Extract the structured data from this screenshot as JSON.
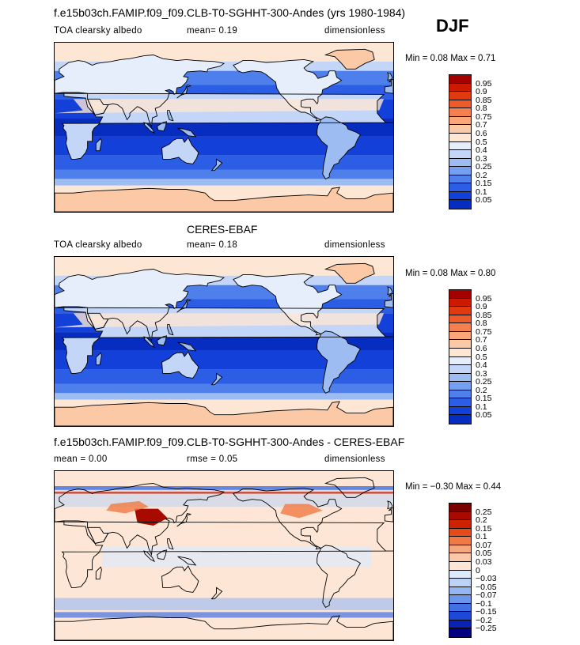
{
  "header": {
    "title": "f.e15b03ch.FAMIP.f09_f09.CLB-T0-SGHHT-300-Andes (yrs 1980-1984)",
    "season": "DJF"
  },
  "panels": [
    {
      "id": "model",
      "title": "",
      "variable": "TOA clearsky albedo",
      "stat1": "mean=   0.19",
      "stat2": "",
      "units": "dimensionless",
      "minmax": "Min =   0.08  Max =   0.71",
      "levels": [
        "0.95",
        "0.9",
        "0.85",
        "0.8",
        "0.75",
        "0.7",
        "0.6",
        "0.5",
        "0.4",
        "0.3",
        "0.25",
        "0.2",
        "0.15",
        "0.1",
        "0.05"
      ],
      "colors": [
        "#a50000",
        "#cc1a00",
        "#e0380f",
        "#ee5a2a",
        "#f4804f",
        "#f8a67a",
        "#fbc9a5",
        "#fde6d4",
        "#e6eefb",
        "#c3d6f7",
        "#9dbdf2",
        "#779ff0",
        "#4f7fea",
        "#2b5ee4",
        "#1340d8",
        "#062cc0"
      ],
      "fill_style": "albedo"
    },
    {
      "id": "obs",
      "title": "CERES-EBAF",
      "variable": "TOA clearsky albedo",
      "stat1": "mean=   0.18",
      "stat2": "",
      "units": "dimensionless",
      "minmax": "Min =   0.08  Max =   0.80",
      "levels": [
        "0.95",
        "0.9",
        "0.85",
        "0.8",
        "0.75",
        "0.7",
        "0.6",
        "0.5",
        "0.4",
        "0.3",
        "0.25",
        "0.2",
        "0.15",
        "0.1",
        "0.05"
      ],
      "colors": [
        "#a50000",
        "#cc1a00",
        "#e0380f",
        "#ee5a2a",
        "#f4804f",
        "#f8a67a",
        "#fbc9a5",
        "#fde6d4",
        "#e6eefb",
        "#c3d6f7",
        "#9dbdf2",
        "#779ff0",
        "#4f7fea",
        "#2b5ee4",
        "#1340d8",
        "#062cc0"
      ],
      "fill_style": "albedo"
    },
    {
      "id": "diff",
      "title": "f.e15b03ch.FAMIP.f09_f09.CLB-T0-SGHHT-300-Andes - CERES-EBAF",
      "variable": "",
      "stat1": "mean =   0.00",
      "stat2": "rmse =   0.05",
      "units": "dimensionless",
      "minmax": "Min = −0.30  Max =   0.44",
      "levels": [
        "0.25",
        "0.2",
        "0.15",
        "0.1",
        "0.07",
        "0.05",
        "0.03",
        "0",
        "−0.03",
        "−0.05",
        "−0.07",
        "−0.1",
        "−0.15",
        "−0.2",
        "−0.25"
      ],
      "colors": [
        "#7a0000",
        "#a80a00",
        "#cc2200",
        "#e54a1a",
        "#f07a45",
        "#f8a77d",
        "#fbc7a9",
        "#fde6d6",
        "#ddeafb",
        "#bcd3f6",
        "#95b7f1",
        "#6c95ec",
        "#4171e4",
        "#1e48d8",
        "#0a22b4",
        "#000080"
      ],
      "fill_style": "diff"
    }
  ]
}
